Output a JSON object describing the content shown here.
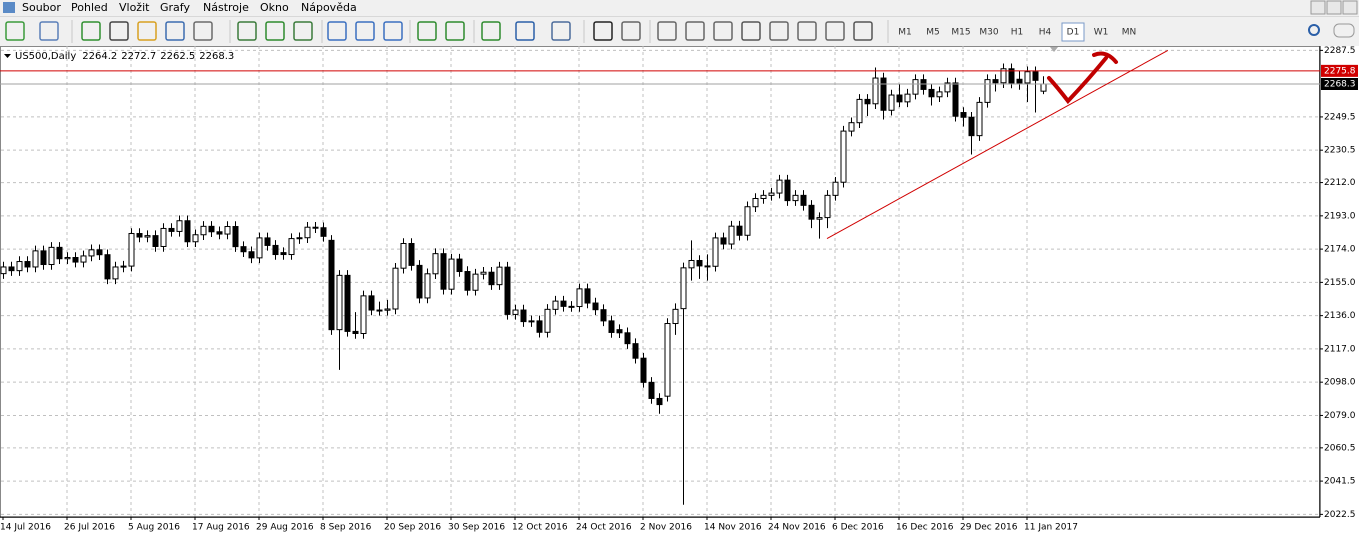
{
  "menu": [
    "Soubor",
    "Pohled",
    "Vložit",
    "Grafy",
    "Nástroje",
    "Okno",
    "Nápověda"
  ],
  "timeframes": [
    "M1",
    "M5",
    "M15",
    "M30",
    "H1",
    "H4",
    "D1",
    "W1",
    "MN"
  ],
  "active_timeframe": "D1",
  "chart_data": {
    "type": "candlestick",
    "symbol": "US500,Daily",
    "categories": [
      "14 Jul 2016",
      null,
      null,
      null,
      null,
      null,
      null,
      null,
      "26 Jul 2016",
      null,
      null,
      null,
      null,
      null,
      null,
      null,
      "5 Aug 2016",
      null,
      null,
      null,
      null,
      null,
      null,
      null,
      "17 Aug 2016",
      null,
      null,
      null,
      null,
      null,
      null,
      null,
      "29 Aug 2016",
      null,
      null,
      null,
      null,
      null,
      null,
      null,
      "8 Sep 2016",
      null,
      null,
      null,
      null,
      null,
      null,
      null,
      "20 Sep 2016",
      null,
      null,
      null,
      null,
      null,
      null,
      null,
      "30 Sep 2016",
      null,
      null,
      null,
      null,
      null,
      null,
      null,
      "12 Oct 2016",
      null,
      null,
      null,
      null,
      null,
      null,
      null,
      "24 Oct 2016",
      null,
      null,
      null,
      null,
      null,
      null,
      null,
      "2 Nov 2016",
      null,
      null,
      null,
      null,
      null,
      null,
      null,
      "14 Nov 2016",
      null,
      null,
      null,
      null,
      null,
      null,
      null,
      "24 Nov 2016",
      null,
      null,
      null,
      null,
      null,
      null,
      null,
      "6 Dec 2016",
      null,
      null,
      null,
      null,
      null,
      null,
      null,
      "16 Dec 2016",
      null,
      null,
      null,
      null,
      null,
      null,
      null,
      "29 Dec 2016",
      null,
      null,
      null,
      null,
      null,
      null,
      null,
      "11 Jan 2017",
      null,
      null
    ],
    "ohlc": [
      [
        2160.0,
        2166.8,
        2157.0,
        2163.8
      ],
      [
        2163.8,
        2166.8,
        2158.7,
        2161.7
      ],
      [
        2161.7,
        2169.9,
        2158.7,
        2166.9
      ],
      [
        2166.9,
        2169.9,
        2160.8,
        2163.8
      ],
      [
        2163.8,
        2176.0,
        2160.8,
        2173.0
      ],
      [
        2173.0,
        2176.0,
        2162.2,
        2165.2
      ],
      [
        2165.2,
        2178.0,
        2162.2,
        2175.0
      ],
      [
        2175.0,
        2178.0,
        2165.5,
        2168.5
      ],
      [
        2168.5,
        2172.2,
        2165.5,
        2169.2
      ],
      [
        2169.2,
        2172.2,
        2163.6,
        2166.6
      ],
      [
        2166.6,
        2173.1,
        2163.6,
        2170.1
      ],
      [
        2170.1,
        2176.6,
        2167.1,
        2173.6
      ],
      [
        2173.6,
        2176.6,
        2167.8,
        2170.8
      ],
      [
        2170.8,
        2173.8,
        2154.0,
        2157.0
      ],
      [
        2157.0,
        2166.8,
        2154.0,
        2163.8
      ],
      [
        2163.8,
        2167.3,
        2160.8,
        2164.3
      ],
      [
        2164.3,
        2185.9,
        2161.3,
        2182.9
      ],
      [
        2182.9,
        2185.9,
        2177.9,
        2180.9
      ],
      [
        2180.9,
        2184.7,
        2177.9,
        2181.7
      ],
      [
        2181.7,
        2184.7,
        2172.5,
        2175.5
      ],
      [
        2175.5,
        2188.8,
        2172.5,
        2185.8
      ],
      [
        2185.8,
        2188.8,
        2181.1,
        2184.1
      ],
      [
        2184.1,
        2193.2,
        2181.1,
        2190.2
      ],
      [
        2190.2,
        2193.2,
        2175.2,
        2178.2
      ],
      [
        2178.2,
        2185.2,
        2175.2,
        2182.2
      ],
      [
        2182.2,
        2190.0,
        2179.2,
        2187.0
      ],
      [
        2187.0,
        2190.0,
        2180.9,
        2183.9
      ],
      [
        2183.9,
        2186.9,
        2179.6,
        2182.6
      ],
      [
        2182.6,
        2189.9,
        2179.6,
        2186.9
      ],
      [
        2186.9,
        2189.9,
        2172.4,
        2175.4
      ],
      [
        2175.4,
        2178.4,
        2169.5,
        2172.5
      ],
      [
        2172.5,
        2175.5,
        2166.0,
        2169.0
      ],
      [
        2169.0,
        2183.4,
        2166.0,
        2180.4
      ],
      [
        2180.4,
        2183.4,
        2173.1,
        2176.1
      ],
      [
        2176.1,
        2179.1,
        2167.9,
        2170.9
      ],
      [
        2172.0,
        2175.0,
        2167.9,
        2170.9
      ],
      [
        2170.9,
        2183.0,
        2167.9,
        2180.0
      ],
      [
        2180.0,
        2183.5,
        2177.0,
        2180.5
      ],
      [
        2180.5,
        2189.5,
        2177.5,
        2186.5
      ],
      [
        2186.5,
        2189.5,
        2183.2,
        2186.2
      ],
      [
        2186.2,
        2189.2,
        2178.3,
        2181.3
      ],
      [
        2179.0,
        2182.0,
        2125.0,
        2128.0
      ],
      [
        2128.0,
        2162.0,
        2105.0,
        2159.0
      ],
      [
        2159.0,
        2162.0,
        2124.0,
        2127.0
      ],
      [
        2127.0,
        2138.0,
        2122.8,
        2125.8
      ],
      [
        2125.8,
        2150.3,
        2122.8,
        2147.3
      ],
      [
        2147.3,
        2150.3,
        2136.2,
        2139.2
      ],
      [
        2139.2,
        2144.0,
        2136.1,
        2139.1
      ],
      [
        2139.1,
        2145.0,
        2136.1,
        2139.8
      ],
      [
        2139.8,
        2166.1,
        2136.8,
        2163.1
      ],
      [
        2163.1,
        2180.2,
        2160.1,
        2177.2
      ],
      [
        2177.2,
        2180.2,
        2161.7,
        2164.7
      ],
      [
        2164.7,
        2167.7,
        2143.1,
        2146.1
      ],
      [
        2146.1,
        2162.9,
        2143.1,
        2159.9
      ],
      [
        2159.9,
        2174.4,
        2156.9,
        2171.4
      ],
      [
        2171.4,
        2174.4,
        2148.1,
        2151.1
      ],
      [
        2151.1,
        2171.3,
        2148.1,
        2168.3
      ],
      [
        2168.3,
        2171.3,
        2158.2,
        2161.2
      ],
      [
        2161.2,
        2164.2,
        2147.5,
        2150.5
      ],
      [
        2150.5,
        2162.7,
        2147.5,
        2159.7
      ],
      [
        2159.7,
        2163.8,
        2156.7,
        2160.8
      ],
      [
        2160.8,
        2163.8,
        2150.7,
        2153.7
      ],
      [
        2153.7,
        2166.7,
        2150.7,
        2163.7
      ],
      [
        2163.7,
        2166.7,
        2133.7,
        2136.7
      ],
      [
        2136.7,
        2142.2,
        2133.7,
        2139.2
      ],
      [
        2139.2,
        2142.2,
        2129.6,
        2132.6
      ],
      [
        2132.6,
        2136.0,
        2129.6,
        2133.0
      ],
      [
        2133.0,
        2136.0,
        2123.5,
        2126.5
      ],
      [
        2126.5,
        2142.6,
        2123.5,
        2139.6
      ],
      [
        2139.6,
        2147.3,
        2136.6,
        2144.3
      ],
      [
        2144.3,
        2147.3,
        2138.3,
        2141.3
      ],
      [
        2141.3,
        2144.3,
        2138.2,
        2141.2
      ],
      [
        2141.2,
        2154.3,
        2138.2,
        2151.3
      ],
      [
        2151.3,
        2154.3,
        2140.2,
        2143.2
      ],
      [
        2143.2,
        2146.2,
        2136.4,
        2139.4
      ],
      [
        2139.4,
        2142.4,
        2130.0,
        2133.0
      ],
      [
        2133.0,
        2136.0,
        2123.4,
        2126.4
      ],
      [
        2128.0,
        2131.0,
        2123.2,
        2126.2
      ],
      [
        2126.2,
        2129.2,
        2117.0,
        2120.0
      ],
      [
        2120.0,
        2123.0,
        2108.7,
        2111.7
      ],
      [
        2111.7,
        2114.7,
        2094.9,
        2097.9
      ],
      [
        2097.9,
        2100.9,
        2085.7,
        2088.7
      ],
      [
        2088.7,
        2091.7,
        2080.0,
        2085.2
      ],
      [
        2090.0,
        2134.5,
        2087.0,
        2131.5
      ],
      [
        2131.5,
        2143.0,
        2125.0,
        2139.6
      ],
      [
        2140.0,
        2166.3,
        2028.0,
        2163.3
      ],
      [
        2163.3,
        2179.0,
        2156.0,
        2167.5
      ],
      [
        2167.5,
        2170.5,
        2157.0,
        2164.4
      ],
      [
        2164.4,
        2171.0,
        2156.0,
        2164.2
      ],
      [
        2164.2,
        2183.4,
        2161.2,
        2180.4
      ],
      [
        2180.4,
        2183.4,
        2173.9,
        2176.9
      ],
      [
        2176.9,
        2190.1,
        2173.9,
        2187.1
      ],
      [
        2187.1,
        2190.1,
        2178.9,
        2181.9
      ],
      [
        2181.9,
        2201.2,
        2178.9,
        2198.2
      ],
      [
        2198.2,
        2205.9,
        2195.2,
        2202.9
      ],
      [
        2202.9,
        2207.7,
        2199.9,
        2204.7
      ],
      [
        2204.7,
        2209.0,
        2201.7,
        2206.0
      ],
      [
        2206.0,
        2216.4,
        2203.0,
        2213.4
      ],
      [
        2213.4,
        2216.4,
        2198.7,
        2201.7
      ],
      [
        2201.7,
        2207.7,
        2198.7,
        2204.7
      ],
      [
        2204.7,
        2207.7,
        2196.0,
        2199.0
      ],
      [
        2199.0,
        2202.0,
        2186.0,
        2191.1
      ],
      [
        2191.1,
        2195.0,
        2180.0,
        2192.0
      ],
      [
        2192.0,
        2207.7,
        2186.0,
        2204.7
      ],
      [
        2204.7,
        2215.2,
        2201.7,
        2212.2
      ],
      [
        2212.2,
        2244.4,
        2209.2,
        2241.4
      ],
      [
        2241.4,
        2249.2,
        2238.4,
        2246.2
      ],
      [
        2246.2,
        2262.5,
        2243.2,
        2259.5
      ],
      [
        2259.5,
        2262.5,
        2250.0,
        2257.0
      ],
      [
        2257.0,
        2277.7,
        2254.0,
        2271.7
      ],
      [
        2271.7,
        2274.7,
        2248.0,
        2253.3
      ],
      [
        2253.3,
        2265.0,
        2250.3,
        2262.0
      ],
      [
        2262.0,
        2268.0,
        2255.1,
        2258.1
      ],
      [
        2258.1,
        2265.5,
        2255.1,
        2262.5
      ],
      [
        2262.5,
        2273.8,
        2259.5,
        2270.8
      ],
      [
        2270.8,
        2273.8,
        2262.2,
        2265.2
      ],
      [
        2265.2,
        2268.2,
        2256.0,
        2261.0
      ],
      [
        2261.0,
        2266.8,
        2258.0,
        2263.8
      ],
      [
        2263.8,
        2271.9,
        2260.8,
        2268.9
      ],
      [
        2268.9,
        2271.9,
        2246.9,
        2249.9
      ],
      [
        2252.0,
        2255.0,
        2244.0,
        2249.3
      ],
      [
        2249.3,
        2252.3,
        2228.0,
        2238.8
      ],
      [
        2238.8,
        2260.8,
        2235.8,
        2257.8
      ],
      [
        2257.8,
        2273.8,
        2254.8,
        2270.8
      ],
      [
        2270.8,
        2273.8,
        2264.0,
        2269.0
      ],
      [
        2269.0,
        2280.0,
        2266.0,
        2277.0
      ],
      [
        2277.0,
        2280.0,
        2265.9,
        2268.9
      ],
      [
        2271.0,
        2276.0,
        2265.0,
        2268.9
      ],
      [
        2268.9,
        2278.3,
        2258.0,
        2275.3
      ],
      [
        2275.3,
        2278.3,
        2252.0,
        2270.4
      ],
      [
        2264.2,
        2272.7,
        2262.5,
        2268.3
      ]
    ],
    "ylim": [
      2021,
      2290
    ],
    "yticks": [
      2022.5,
      2041.5,
      2060.5,
      {
        "value": 2079.0,
        "label": "2079.0"
      },
      {
        "value": 2098.0,
        "label": "2098.0"
      },
      {
        "value": 2117.0,
        "label": "2117.0"
      },
      {
        "value": 2136.0,
        "label": "2136.0"
      },
      {
        "value": 2155.0,
        "label": "2155.0"
      },
      {
        "value": 2174.0,
        "label": "2174.0"
      },
      {
        "value": 2193.0,
        "label": "2193.0"
      },
      {
        "value": 2212.0,
        "label": "2212.0"
      },
      2230.5,
      2249.5,
      2287.5
    ],
    "grid": true,
    "up_color": "#ffffff",
    "down_color": "#000000",
    "level": {
      "value": 2275.8,
      "color": "#d00000"
    },
    "trendline": {
      "points": [
        [
          103,
          2180
        ],
        [
          145.6,
          2287.5
        ]
      ],
      "color": "#d00000"
    }
  }
}
